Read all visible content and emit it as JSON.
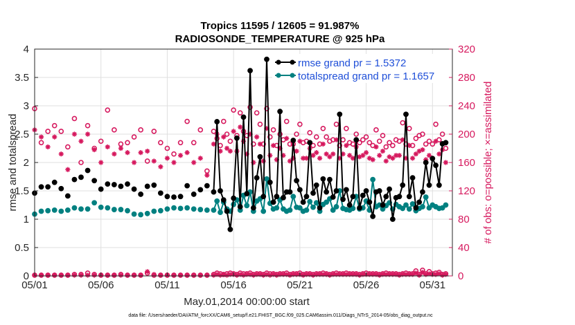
{
  "chart_data": {
    "type": "line",
    "title_line1": "Tropics 11595 / 12605 = 91.987%",
    "title_line2": "RADIOSONDE_TEMPERATURE @ 925 hPa",
    "xlabel": "May.01,2014 00:00:00 start",
    "ylabel_left": "rmse and totalspread",
    "ylabel_right": "# of obs: o=possible; ×=assimilated",
    "footnote": "data file: /Users/raeder/DAI/ATM_forcXX/CAM6_setup/f.e21.FHIST_BGC.f09_025.CAM6assim.011/Diags_NTrS_2014-05/obs_diag_output.nc",
    "xlim": [
      0,
      31.5
    ],
    "ylim_left": [
      0,
      4
    ],
    "ylim_right": [
      0,
      320
    ],
    "x_ticks": [
      {
        "v": 0,
        "label": "05/01"
      },
      {
        "v": 5,
        "label": "05/06"
      },
      {
        "v": 10,
        "label": "05/11"
      },
      {
        "v": 15,
        "label": "05/16"
      },
      {
        "v": 20,
        "label": "05/21"
      },
      {
        "v": 25,
        "label": "05/26"
      },
      {
        "v": 30,
        "label": "05/31"
      }
    ],
    "y_ticks_left": [
      "0",
      "0.5",
      "1",
      "1.5",
      "2",
      "2.5",
      "3",
      "3.5",
      "4"
    ],
    "y_ticks_right": [
      "0",
      "40",
      "80",
      "120",
      "160",
      "200",
      "240",
      "280",
      "320"
    ],
    "legend": [
      {
        "name": "rmse grand pr = 1.5372",
        "color": "#000000"
      },
      {
        "name": "totalspread grand pr = 1.1657",
        "color": "#008080"
      }
    ],
    "colors": {
      "rmse": "#000000",
      "spread": "#008080",
      "obs": "#D6195E",
      "legend_text": "#1F4FD8"
    },
    "sparse_part": {
      "x": [
        0,
        0.5,
        1,
        1.5,
        2,
        2.5,
        3,
        3.5,
        4,
        4.5,
        5,
        5.5,
        6,
        6.5,
        7,
        7.5,
        8,
        8.5,
        9,
        9.5,
        10,
        10.5,
        11,
        11.5,
        12,
        12.5,
        13
      ],
      "rmse": [
        1.46,
        1.57,
        1.57,
        1.65,
        1.54,
        1.41,
        1.7,
        1.74,
        1.86,
        1.68,
        1.53,
        1.62,
        1.61,
        1.58,
        1.62,
        1.53,
        1.44,
        1.58,
        1.6,
        1.46,
        1.4,
        1.39,
        1.4,
        1.59,
        1.44,
        1.52,
        1.59
      ],
      "spread": [
        1.09,
        1.14,
        1.15,
        1.16,
        1.14,
        1.16,
        1.2,
        1.18,
        1.18,
        1.29,
        1.21,
        1.2,
        1.17,
        1.17,
        1.15,
        1.09,
        1.08,
        1.1,
        1.14,
        1.15,
        1.18,
        1.2,
        1.19,
        1.2,
        1.18,
        1.17,
        1.16
      ],
      "possible": [
        236,
        188,
        204,
        212,
        204,
        182,
        222,
        160,
        212,
        180,
        190,
        234,
        206,
        186,
        188,
        196,
        206,
        162,
        204,
        188,
        180,
        172,
        188,
        218,
        188,
        206,
        148
      ],
      "assimilated": [
        206,
        196,
        182,
        196,
        172,
        150,
        200,
        190,
        200,
        178,
        160,
        182,
        172,
        180,
        174,
        160,
        174,
        176,
        162,
        154,
        166,
        160,
        170,
        174,
        160,
        166,
        142
      ],
      "possible_bottom": [
        1,
        1,
        1,
        1,
        1,
        1,
        2,
        2,
        4,
        2,
        1,
        1,
        1,
        2,
        1,
        1,
        1,
        4,
        1,
        1,
        1,
        1,
        1,
        1,
        1,
        1,
        1
      ],
      "assimilated_bottom": [
        1,
        1,
        1,
        1,
        1,
        1,
        1,
        1,
        1,
        1,
        1,
        1,
        1,
        1,
        1,
        1,
        1,
        6,
        2,
        1,
        1,
        1,
        1,
        1,
        1,
        1,
        1
      ]
    },
    "dense_part": {
      "x": [
        13.5,
        13.75,
        14.0,
        14.25,
        14.5,
        14.75,
        15.0,
        15.25,
        15.5,
        15.75,
        16.0,
        16.25,
        16.5,
        16.75,
        17.0,
        17.25,
        17.5,
        17.75,
        18.0,
        18.25,
        18.5,
        18.75,
        19.0,
        19.25,
        19.5,
        19.75,
        20.0,
        20.25,
        20.5,
        20.75,
        21.0,
        21.25,
        21.5,
        21.75,
        22.0,
        22.25,
        22.5,
        22.75,
        23.0,
        23.25,
        23.5,
        23.75,
        24.0,
        24.25,
        24.5,
        24.75,
        25.0,
        25.25,
        25.5,
        25.75,
        26.0,
        26.25,
        26.5,
        26.75,
        27.0,
        27.25,
        27.5,
        27.75,
        28.0,
        28.25,
        28.5,
        28.75,
        29.0,
        29.25,
        29.5,
        29.75,
        30.0,
        30.25,
        30.5,
        30.75,
        31.0
      ],
      "rmse": [
        1.48,
        2.72,
        1.5,
        1.34,
        1.14,
        0.82,
        1.37,
        2.43,
        1.22,
        2.8,
        1.45,
        3.62,
        1.2,
        1.73,
        2.1,
        1.4,
        3.82,
        1.65,
        1.3,
        1.4,
        2.9,
        1.38,
        1.48,
        1.48,
        2.39,
        1.68,
        1.52,
        1.3,
        1.4,
        2.35,
        1.46,
        1.6,
        1.2,
        1.71,
        1.48,
        1.7,
        1.39,
        1.5,
        2.85,
        1.35,
        1.52,
        1.25,
        1.4,
        2.4,
        1.2,
        1.42,
        1.5,
        1.3,
        1.05,
        1.48,
        1.5,
        1.25,
        1.4,
        1.53,
        1.0,
        1.38,
        1.4,
        1.6,
        2.85,
        1.4,
        1.73,
        1.2,
        1.3,
        1.48,
        2.0,
        1.6,
        2.07,
        1.95,
        1.6,
        2.33,
        2.35
      ],
      "spread": [
        1.16,
        1.32,
        1.12,
        1.3,
        1.18,
        1.14,
        1.26,
        1.34,
        1.16,
        1.42,
        1.24,
        1.48,
        1.14,
        1.32,
        1.36,
        1.14,
        1.71,
        1.28,
        1.18,
        1.2,
        1.34,
        1.18,
        1.14,
        1.16,
        1.4,
        1.21,
        1.2,
        1.14,
        1.16,
        1.31,
        1.21,
        1.29,
        1.14,
        1.26,
        1.3,
        1.36,
        1.16,
        1.22,
        1.5,
        1.19,
        1.17,
        1.16,
        1.19,
        1.4,
        1.18,
        1.2,
        1.32,
        1.16,
        1.7,
        1.22,
        1.25,
        1.18,
        1.24,
        1.29,
        1.18,
        1.26,
        1.22,
        1.19,
        1.25,
        1.18,
        1.27,
        1.15,
        1.19,
        1.22,
        1.39,
        1.2,
        1.25,
        1.22,
        1.19,
        1.2,
        1.25
      ],
      "possible": [
        204,
        194,
        184,
        218,
        200,
        190,
        234,
        198,
        230,
        204,
        198,
        238,
        186,
        230,
        214,
        186,
        236,
        196,
        206,
        184,
        200,
        192,
        218,
        186,
        186,
        200,
        214,
        188,
        190,
        202,
        184,
        196,
        186,
        208,
        196,
        190,
        192,
        214,
        184,
        192,
        208,
        188,
        186,
        200,
        188,
        192,
        196,
        188,
        184,
        206,
        190,
        198,
        182,
        188,
        184,
        192,
        190,
        216,
        186,
        208,
        184,
        194,
        198,
        200,
        186,
        190,
        186,
        214,
        192,
        200,
        180
      ],
      "assimilated": [
        186,
        200,
        176,
        196,
        180,
        176,
        204,
        176,
        210,
        190,
        172,
        200,
        160,
        196,
        186,
        162,
        208,
        170,
        184,
        164,
        180,
        170,
        194,
        162,
        166,
        176,
        190,
        166,
        166,
        180,
        170,
        174,
        166,
        186,
        172,
        168,
        172,
        192,
        166,
        172,
        184,
        170,
        166,
        182,
        168,
        170,
        174,
        166,
        164,
        182,
        170,
        176,
        162,
        168,
        166,
        170,
        170,
        192,
        166,
        184,
        166,
        172,
        176,
        178,
        164,
        170,
        166,
        190,
        172,
        178,
        160
      ],
      "possible_bottom": [
        2,
        4,
        3,
        2,
        3,
        4,
        3,
        2,
        4,
        3,
        3,
        4,
        2,
        3,
        3,
        2,
        4,
        3,
        3,
        2,
        3,
        3,
        4,
        2,
        3,
        3,
        4,
        2,
        3,
        3,
        2,
        3,
        3,
        4,
        3,
        2,
        3,
        4,
        3,
        3,
        4,
        3,
        3,
        3,
        2,
        3,
        4,
        3,
        3,
        3,
        2,
        3,
        4,
        3,
        3,
        3,
        2,
        3,
        4,
        3,
        3,
        7,
        2,
        8,
        3,
        6,
        3,
        4,
        5,
        2,
        3
      ],
      "assimilated_bottom": [
        1,
        2,
        1,
        2,
        1,
        2,
        2,
        1,
        2,
        1,
        2,
        2,
        1,
        2,
        2,
        1,
        2,
        1,
        2,
        1,
        2,
        2,
        2,
        1,
        2,
        2,
        2,
        1,
        2,
        2,
        1,
        2,
        2,
        2,
        2,
        1,
        2,
        2,
        2,
        2,
        2,
        2,
        2,
        2,
        1,
        2,
        2,
        2,
        2,
        2,
        1,
        2,
        2,
        2,
        2,
        2,
        1,
        2,
        2,
        2,
        2,
        4,
        1,
        5,
        2,
        3,
        2,
        2,
        3,
        1,
        2
      ]
    }
  }
}
